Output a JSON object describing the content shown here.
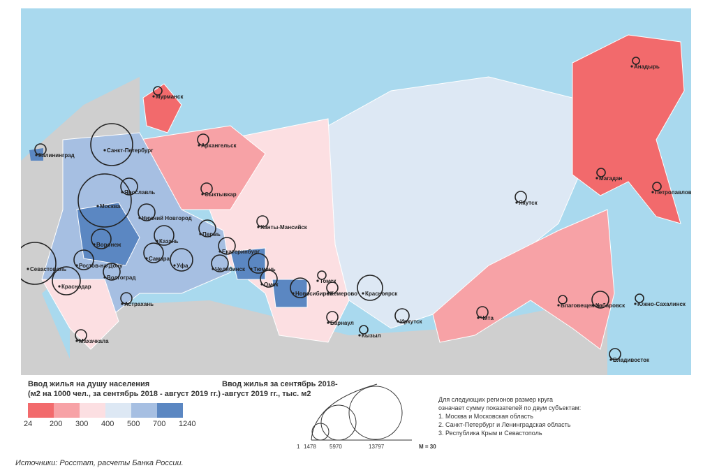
{
  "legend_color": {
    "title_line1": "Ввод жилья на душу населения",
    "title_line2": "(м2 на 1000 чел., за сентябрь 2018 - август 2019 гг.)",
    "colors": [
      "#f26a6c",
      "#f7a2a6",
      "#fcdfe2",
      "#dde8f4",
      "#a6bfe2",
      "#5b87c2"
    ],
    "ticks": [
      "24",
      "200",
      "300",
      "400",
      "500",
      "700",
      "1240"
    ]
  },
  "legend_size": {
    "title_line1": "Ввод жилья за сентябрь 2018-",
    "title_line2": "-август 2019 гг., тыс. м2",
    "ticks": [
      "1",
      "1478",
      "5970",
      "13797"
    ],
    "scale": "M = 30"
  },
  "note": {
    "line1": "Для следующих регионов размер круга",
    "line2": "означает сумму показателей по двум субъектам:",
    "items": [
      "1. Москва и Московская область",
      "2. Санкт-Петербург и Ленинградская область",
      "3. Республика Крым и Севастополь"
    ]
  },
  "source": "Источники: Росстат, расчеты Банка России.",
  "colors": {
    "sea": "#a9d9ee",
    "land": "#cfcfcf"
  },
  "cities": [
    "Мурманск",
    "Архангельск",
    "Санкт-Петербург",
    "Калининград",
    "Ярославль",
    "Москва",
    "Нижний Новгород",
    "Сыктывкар",
    "Пермь",
    "Казань",
    "Воронеж",
    "Самара",
    "Уфа",
    "Екатеринбург",
    "Ханты-Мансийск",
    "Тюмень",
    "Челябинск",
    "Ростов-на-Дону",
    "Севастополь",
    "Краснодар",
    "Волгоград",
    "Астрахань",
    "Махачкала",
    "Омск",
    "Новосибирск",
    "Томск",
    "Кемерово",
    "Красноярск",
    "Барнаул",
    "Кызыл",
    "Иркутск",
    "Чита",
    "Якутск",
    "Благовещенск",
    "Хабаровск",
    "Владивосток",
    "Южно-Сахалинск",
    "Магадан",
    "Петропавловск-Камчатский",
    "Анадырь"
  ]
}
